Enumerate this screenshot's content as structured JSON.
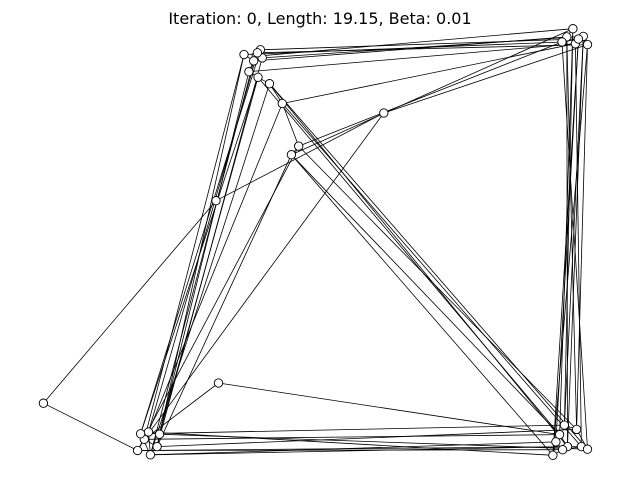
{
  "chart_data": {
    "type": "line",
    "title": "Iteration: 0, Length: 19.15, Beta: 0.01",
    "xlabel": "",
    "ylabel": "",
    "xlim": [
      0.0,
      1.0
    ],
    "ylim": [
      0.0,
      1.0
    ],
    "axes_visible": false,
    "grid": false,
    "line_color": "#000000",
    "node_fill": "#ffffff",
    "nodes": [
      {
        "x": 0.045,
        "y": 0.146
      },
      {
        "x": 0.333,
        "y": 0.193
      },
      {
        "x": 0.329,
        "y": 0.617
      },
      {
        "x": 0.605,
        "y": 0.821
      },
      {
        "x": 0.395,
        "y": 0.953
      },
      {
        "x": 0.391,
        "y": 0.942
      },
      {
        "x": 0.383,
        "y": 0.917
      },
      {
        "x": 0.375,
        "y": 0.957
      },
      {
        "x": 0.402,
        "y": 0.968
      },
      {
        "x": 0.405,
        "y": 0.949
      },
      {
        "x": 0.397,
        "y": 0.961
      },
      {
        "x": 0.398,
        "y": 0.904
      },
      {
        "x": 0.417,
        "y": 0.889
      },
      {
        "x": 0.438,
        "y": 0.843
      },
      {
        "x": 0.453,
        "y": 0.724
      },
      {
        "x": 0.465,
        "y": 0.744
      },
      {
        "x": 0.916,
        "y": 1.017
      },
      {
        "x": 0.933,
        "y": 0.999
      },
      {
        "x": 0.906,
        "y": 0.998
      },
      {
        "x": 0.92,
        "y": 0.982
      },
      {
        "x": 0.94,
        "y": 0.98
      },
      {
        "x": 0.898,
        "y": 0.986
      },
      {
        "x": 0.925,
        "y": 0.993
      },
      {
        "x": 0.211,
        "y": 0.062
      },
      {
        "x": 0.221,
        "y": 0.026
      },
      {
        "x": 0.2,
        "y": 0.036
      },
      {
        "x": 0.232,
        "y": 0.045
      },
      {
        "x": 0.218,
        "y": 0.079
      },
      {
        "x": 0.236,
        "y": 0.074
      },
      {
        "x": 0.205,
        "y": 0.075
      },
      {
        "x": 0.894,
        "y": 0.073
      },
      {
        "x": 0.907,
        "y": 0.045
      },
      {
        "x": 0.93,
        "y": 0.045
      },
      {
        "x": 0.922,
        "y": 0.085
      },
      {
        "x": 0.883,
        "y": 0.025
      },
      {
        "x": 0.94,
        "y": 0.039
      },
      {
        "x": 0.902,
        "y": 0.095
      },
      {
        "x": 0.888,
        "y": 0.056
      },
      {
        "x": 0.899,
        "y": 0.038
      }
    ],
    "tour": [
      0,
      25,
      27,
      24,
      29,
      23,
      26,
      28,
      7,
      5,
      4,
      9,
      8,
      10,
      6,
      11,
      12,
      13,
      15,
      14,
      30,
      31,
      34,
      37,
      38,
      32,
      35,
      33,
      36,
      16,
      18,
      21,
      22,
      19,
      17,
      20,
      3,
      2,
      0
    ],
    "extra_edges": [
      [
        23,
        3
      ],
      [
        26,
        14
      ],
      [
        25,
        15
      ],
      [
        27,
        13
      ],
      [
        24,
        12
      ],
      [
        29,
        11
      ],
      [
        28,
        6
      ],
      [
        1,
        30
      ],
      [
        1,
        23
      ],
      [
        30,
        16
      ],
      [
        31,
        18
      ],
      [
        32,
        19
      ],
      [
        33,
        20
      ],
      [
        35,
        21
      ],
      [
        34,
        22
      ],
      [
        36,
        17
      ],
      [
        23,
        30
      ],
      [
        24,
        31
      ],
      [
        25,
        32
      ],
      [
        26,
        33
      ],
      [
        27,
        34
      ],
      [
        28,
        35
      ],
      [
        29,
        36
      ],
      [
        24,
        37
      ],
      [
        25,
        38
      ],
      [
        4,
        16
      ],
      [
        5,
        18
      ],
      [
        6,
        19
      ],
      [
        7,
        21
      ],
      [
        8,
        22
      ],
      [
        9,
        17
      ],
      [
        10,
        20
      ],
      [
        11,
        30
      ],
      [
        12,
        31
      ],
      [
        13,
        32
      ],
      [
        15,
        33
      ],
      [
        14,
        34
      ],
      [
        12,
        35
      ],
      [
        14,
        16
      ],
      [
        13,
        19
      ],
      [
        15,
        21
      ],
      [
        23,
        7
      ],
      [
        24,
        5
      ],
      [
        26,
        9
      ],
      [
        27,
        10
      ],
      [
        28,
        11
      ],
      [
        29,
        8
      ],
      [
        31,
        17
      ],
      [
        33,
        18
      ],
      [
        34,
        20
      ],
      [
        37,
        22
      ]
    ]
  }
}
